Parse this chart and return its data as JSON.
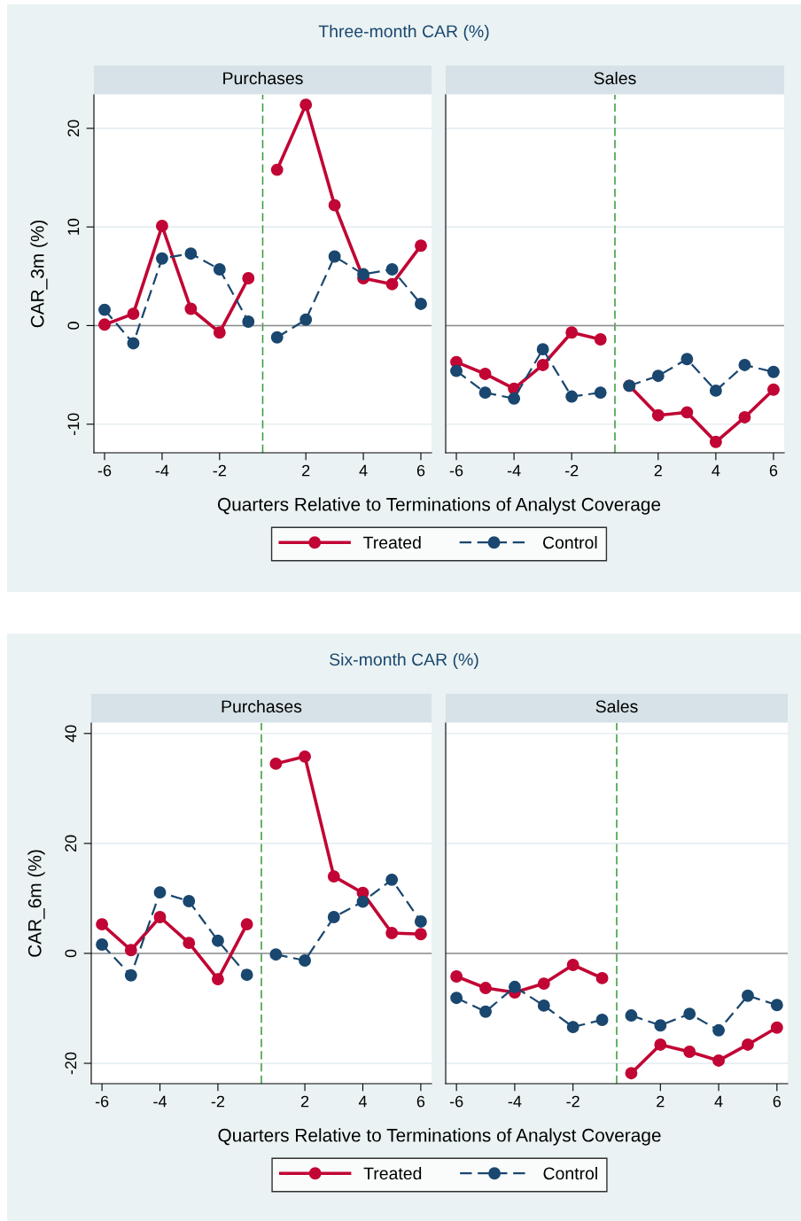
{
  "chart_data": [
    {
      "type": "line",
      "title": "Three-month CAR (%)",
      "subtitle": "Purchases",
      "xlabel": "Quarters Relative to Terminations of Analyst Coverage",
      "ylabel": "CAR_3m (%)",
      "categories": [
        "-6",
        null,
        "-4",
        null,
        "-2",
        null,
        null,
        "2",
        null,
        "4",
        null,
        "6"
      ],
      "series": [
        {
          "name": "Treated",
          "color": "#c10534",
          "line_style": "solid",
          "values": [
            0.1,
            1.2,
            10.1,
            1.7,
            -0.7,
            4.8,
            15.8,
            22.4,
            12.2,
            4.8,
            4.2,
            8.1
          ]
        },
        {
          "name": "Control",
          "color": "#1a476f",
          "line_style": "dashed",
          "values": [
            1.6,
            -1.8,
            6.8,
            7.3,
            5.7,
            0.4,
            -1.2,
            0.6,
            7.0,
            5.2,
            5.7,
            2.2
          ]
        }
      ],
      "ylim": [
        -12.9,
        23.4
      ],
      "yticks": [
        -10,
        0,
        10,
        20
      ],
      "grid": "y",
      "marker": "circle",
      "legend": "bottom",
      "ref_lines": [
        {
          "axis": "y",
          "value": 0,
          "color": "#8c8c8c",
          "line_style": "solid"
        }
      ]
    },
    {
      "type": "line",
      "subtitle": "Sales",
      "categories": [
        "-6",
        null,
        "-4",
        null,
        "-2",
        null,
        null,
        "2",
        null,
        "4",
        null,
        "6"
      ],
      "series": [
        {
          "color": "#c10534",
          "line_style": "solid",
          "values": [
            -3.7,
            -4.9,
            -6.4,
            -4.0,
            -0.7,
            -1.4,
            -6.1,
            -9.1,
            -8.8,
            -11.8,
            -9.3,
            -6.5
          ]
        },
        {
          "color": "#1a476f",
          "line_style": "dashed",
          "values": [
            -4.6,
            -6.8,
            -7.4,
            -2.4,
            -7.2,
            -6.8,
            -6.1,
            -5.1,
            -3.4,
            -6.6,
            -4.0,
            -4.7
          ]
        }
      ],
      "ylim": [
        -12.9,
        23.4
      ],
      "yticks": [
        -10,
        0,
        10,
        20
      ],
      "grid": "y",
      "marker": "circle",
      "tick_labels": "x",
      "ref_lines": [
        {
          "axis": "y",
          "value": 0,
          "color": "#8c8c8c",
          "line_style": "solid"
        }
      ]
    },
    {
      "type": "line",
      "title": "Six-month CAR (%)",
      "subtitle": "Purchases",
      "xlabel": "Quarters Relative to Terminations of Analyst Coverage",
      "ylabel": "CAR_6m (%)",
      "categories": [
        "-6",
        null,
        "-4",
        null,
        "-2",
        null,
        null,
        "2",
        null,
        "4",
        null,
        "6"
      ],
      "series": [
        {
          "name": "Treated",
          "color": "#c10534",
          "line_style": "solid",
          "values": [
            5.3,
            0.6,
            6.6,
            1.9,
            -4.7,
            5.3,
            34.5,
            35.8,
            14.0,
            11.0,
            3.7,
            3.5
          ]
        },
        {
          "name": "Control",
          "color": "#1a476f",
          "line_style": "dashed",
          "values": [
            1.6,
            -4.0,
            11.1,
            9.5,
            2.3,
            -3.9,
            -0.2,
            -1.3,
            6.6,
            9.4,
            13.4,
            5.8
          ]
        }
      ],
      "ylim": [
        -23.7,
        41.9
      ],
      "yticks": [
        -20,
        0,
        20,
        40
      ],
      "grid": "y",
      "marker": "circle",
      "legend": "bottom",
      "ref_lines": [
        {
          "axis": "y",
          "value": 0,
          "color": "#8c8c8c",
          "line_style": "solid"
        }
      ]
    },
    {
      "type": "line",
      "subtitle": "Sales",
      "categories": [
        "-6",
        null,
        "-4",
        null,
        "-2",
        null,
        null,
        "2",
        null,
        "4",
        null,
        "6"
      ],
      "series": [
        {
          "color": "#c10534",
          "line_style": "solid",
          "values": [
            -4.2,
            -6.3,
            -7.1,
            -5.5,
            -2.1,
            -4.5,
            -21.8,
            -16.6,
            -17.9,
            -19.5,
            -16.6,
            -13.5
          ]
        },
        {
          "color": "#1a476f",
          "line_style": "dashed",
          "values": [
            -8.1,
            -10.6,
            -6.1,
            -9.5,
            -13.4,
            -12.1,
            -11.3,
            -13.1,
            -11.0,
            -14.0,
            -7.7,
            -9.4
          ]
        }
      ],
      "ylim": [
        -23.7,
        41.9
      ],
      "yticks": [
        -20,
        0,
        20,
        40
      ],
      "grid": "y",
      "marker": "circle",
      "tick_labels": "x",
      "ref_lines": [
        {
          "axis": "y",
          "value": 0,
          "color": "#8c8c8c",
          "line_style": "solid"
        }
      ]
    }
  ]
}
